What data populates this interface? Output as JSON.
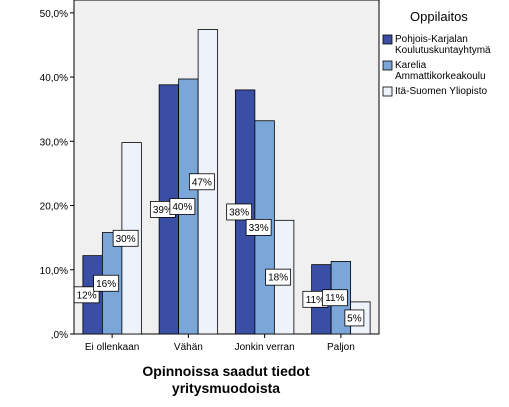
{
  "chart_data": {
    "type": "bar",
    "categories": [
      "Ei ollenkaan",
      "Vähän",
      "Jonkin verran",
      "Paljon"
    ],
    "series": [
      {
        "name": "Pohjois-Karjalan Koulutuskuntayhtymä",
        "name_lines": [
          "Pohjois-Karjalan",
          "Koulutuskuntayhtymä"
        ],
        "color": "#3a4fa3",
        "values": [
          12.2,
          38.8,
          38.0,
          10.8
        ],
        "labels": [
          "12%",
          "39%",
          "38%",
          "11%"
        ]
      },
      {
        "name": "Karelia Ammattikorkeakoulu",
        "name_lines": [
          "Karelia",
          "Ammattikorkeakoulu"
        ],
        "color": "#7ba7d8",
        "values": [
          15.8,
          39.7,
          33.2,
          11.3
        ],
        "labels": [
          "16%",
          "40%",
          "33%",
          "11%"
        ]
      },
      {
        "name": "Itä-Suomen Yliopisto",
        "name_lines": [
          "Itä-Suomen Yliopisto"
        ],
        "color": "#eef2fa",
        "values": [
          29.8,
          47.4,
          17.7,
          5.0
        ],
        "labels": [
          "30%",
          "47%",
          "18%",
          "5%"
        ]
      }
    ],
    "xlabel_lines": [
      "Opinnoissa saadut tiedot",
      "yritysmuodoista"
    ],
    "ylabel": "",
    "ylim": [
      0,
      52
    ],
    "y_ticks": [
      0,
      10,
      20,
      30,
      40,
      50
    ],
    "y_tick_labels": [
      ",0%",
      "10,0%",
      "20,0%",
      "30,0%",
      "40,0%",
      "50,0%"
    ],
    "legend_title": "Oppilaitos",
    "legend_position": "right",
    "plot_background": "#f0f0f0",
    "grid": false
  }
}
